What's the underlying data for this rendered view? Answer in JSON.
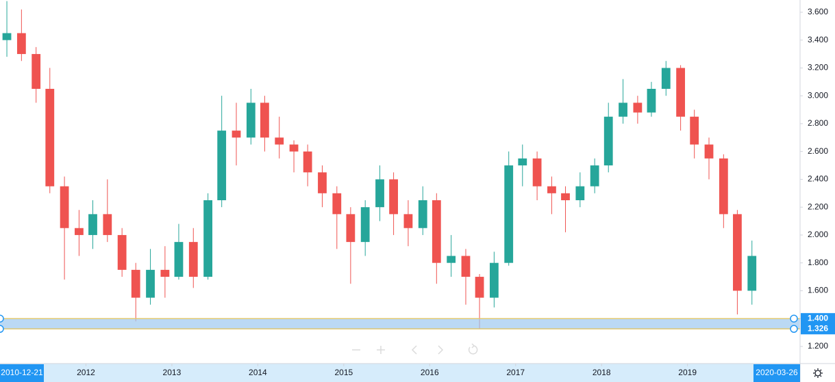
{
  "chart_data": {
    "type": "candlestick",
    "grid": false,
    "up_color": "#26a69a",
    "down_color": "#ef5350",
    "xlim": [
      2011.0,
      2020.31
    ],
    "xticks": [
      2012,
      2013,
      2014,
      2015,
      2016,
      2017,
      2018,
      2019
    ],
    "ylim": [
      1.077,
      3.688
    ],
    "yticks": [
      {
        "value": 1.2,
        "label": "1.200"
      },
      {
        "value": 1.4,
        "label": "1.400"
      },
      {
        "value": 1.6,
        "label": "1.600"
      },
      {
        "value": 1.8,
        "label": "1.800"
      },
      {
        "value": 2.0,
        "label": "2.000"
      },
      {
        "value": 2.2,
        "label": "2.200"
      },
      {
        "value": 2.4,
        "label": "2.400"
      },
      {
        "value": 2.6,
        "label": "2.600"
      },
      {
        "value": 2.8,
        "label": "2.800"
      },
      {
        "value": 3.0,
        "label": "3.000"
      },
      {
        "value": 3.2,
        "label": "3.200"
      },
      {
        "value": 3.4,
        "label": "3.400"
      },
      {
        "value": 3.6,
        "label": "3.600"
      }
    ],
    "range_start_label": "2010-12-21",
    "range_end_label": "2020-03-26",
    "band": [
      {
        "value": 1.4,
        "label": "1.400"
      },
      {
        "value": 1.326,
        "label": "1.326"
      }
    ],
    "x": [
      2011.08,
      2011.25,
      2011.42,
      2011.58,
      2011.75,
      2011.92,
      2012.08,
      2012.25,
      2012.42,
      2012.58,
      2012.75,
      2012.92,
      2013.08,
      2013.25,
      2013.42,
      2013.58,
      2013.75,
      2013.92,
      2014.08,
      2014.25,
      2014.42,
      2014.58,
      2014.75,
      2014.92,
      2015.08,
      2015.25,
      2015.42,
      2015.58,
      2015.75,
      2015.92,
      2016.08,
      2016.25,
      2016.42,
      2016.58,
      2016.75,
      2016.92,
      2017.08,
      2017.25,
      2017.42,
      2017.58,
      2017.75,
      2017.92,
      2018.08,
      2018.25,
      2018.42,
      2018.58,
      2018.75,
      2018.92,
      2019.08,
      2019.25,
      2019.42,
      2019.58,
      2019.75
    ],
    "open": [
      3.4,
      3.45,
      3.3,
      3.05,
      2.35,
      2.05,
      2.0,
      2.15,
      2.0,
      1.75,
      1.55,
      1.75,
      1.7,
      1.95,
      1.7,
      2.25,
      2.75,
      2.7,
      2.95,
      2.7,
      2.65,
      2.6,
      2.45,
      2.3,
      2.15,
      1.95,
      2.2,
      2.4,
      2.15,
      2.05,
      2.25,
      1.8,
      1.85,
      1.7,
      1.55,
      1.8,
      2.5,
      2.55,
      2.35,
      2.3,
      2.25,
      2.35,
      2.5,
      2.85,
      2.95,
      2.88,
      3.05,
      3.2,
      2.85,
      2.65,
      2.55,
      2.15,
      1.6
    ],
    "high": [
      3.68,
      3.62,
      3.35,
      3.2,
      2.42,
      2.18,
      2.25,
      2.4,
      2.05,
      1.8,
      1.9,
      1.92,
      2.08,
      2.05,
      2.3,
      3.0,
      2.95,
      3.05,
      3.0,
      2.85,
      2.68,
      2.65,
      2.5,
      2.35,
      2.2,
      2.25,
      2.5,
      2.45,
      2.25,
      2.35,
      2.3,
      2.0,
      1.9,
      1.72,
      1.88,
      2.6,
      2.65,
      2.6,
      2.42,
      2.35,
      2.45,
      2.55,
      2.95,
      3.12,
      3.0,
      3.1,
      3.25,
      3.22,
      2.9,
      2.7,
      2.58,
      2.18,
      1.96
    ],
    "low": [
      3.28,
      3.25,
      2.95,
      2.3,
      1.68,
      1.85,
      1.9,
      1.95,
      1.7,
      1.38,
      1.5,
      1.55,
      1.68,
      1.62,
      1.68,
      2.2,
      2.5,
      2.65,
      2.6,
      2.55,
      2.45,
      2.35,
      2.2,
      1.9,
      1.65,
      1.85,
      2.1,
      2.0,
      1.92,
      2.0,
      1.65,
      1.7,
      1.5,
      1.33,
      1.48,
      1.78,
      2.35,
      2.25,
      2.15,
      2.02,
      2.2,
      2.3,
      2.45,
      2.8,
      2.8,
      2.85,
      3.0,
      2.75,
      2.55,
      2.4,
      2.05,
      1.43,
      1.5
    ],
    "close": [
      3.45,
      3.3,
      3.05,
      2.35,
      2.05,
      2.0,
      2.15,
      2.0,
      1.75,
      1.55,
      1.75,
      1.7,
      1.95,
      1.7,
      2.25,
      2.75,
      2.7,
      2.95,
      2.7,
      2.65,
      2.6,
      2.45,
      2.3,
      2.15,
      1.95,
      2.2,
      2.4,
      2.15,
      2.05,
      2.25,
      1.8,
      1.85,
      1.7,
      1.55,
      1.8,
      2.5,
      2.55,
      2.35,
      2.3,
      2.25,
      2.35,
      2.5,
      2.85,
      2.95,
      2.88,
      3.05,
      3.2,
      2.85,
      2.65,
      2.55,
      2.15,
      1.6,
      1.85
    ]
  }
}
